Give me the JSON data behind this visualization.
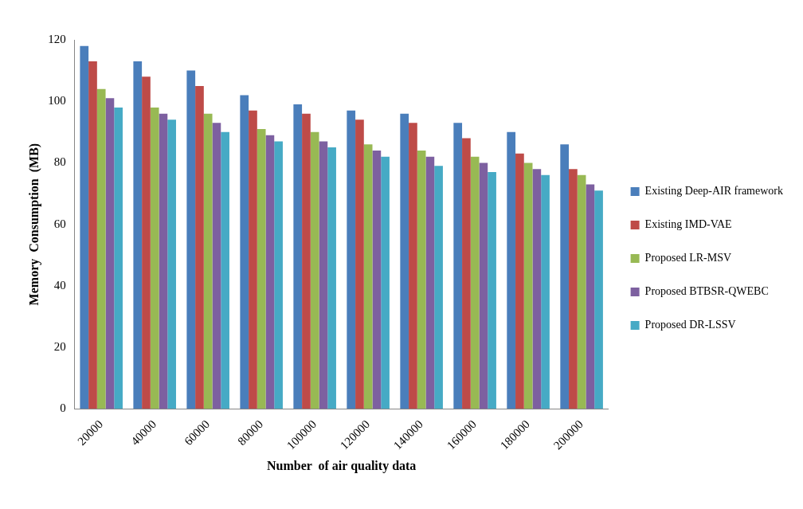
{
  "chart_data": {
    "type": "bar",
    "xlabel": "Number  of air quality data",
    "ylabel": "Memory  Consumption  (MB)",
    "categories": [
      "20000",
      "40000",
      "60000",
      "80000",
      "100000",
      "120000",
      "140000",
      "160000",
      "180000",
      "200000"
    ],
    "series": [
      {
        "name": "Existing Deep-AIR framework",
        "color": "#4a7ebb",
        "values": [
          118,
          113,
          110,
          102,
          99,
          97,
          96,
          93,
          90,
          86
        ]
      },
      {
        "name": "Existing IMD-VAE",
        "color": "#be4b48",
        "values": [
          113,
          108,
          105,
          97,
          96,
          94,
          93,
          88,
          83,
          78
        ]
      },
      {
        "name": "Proposed LR-MSV",
        "color": "#98b954",
        "values": [
          104,
          98,
          96,
          91,
          90,
          86,
          84,
          82,
          80,
          76
        ]
      },
      {
        "name": "Proposed BTBSR-QWEBC",
        "color": "#7d60a0",
        "values": [
          101,
          96,
          93,
          89,
          87,
          84,
          82,
          80,
          78,
          73
        ]
      },
      {
        "name": "Proposed DR-LSSV",
        "color": "#46aac5",
        "values": [
          98,
          94,
          90,
          87,
          85,
          82,
          79,
          77,
          76,
          71
        ]
      }
    ],
    "ylim": [
      0,
      120
    ],
    "yticks": [
      0,
      20,
      40,
      60,
      80,
      100,
      120
    ],
    "grid": false,
    "legend": "right"
  }
}
